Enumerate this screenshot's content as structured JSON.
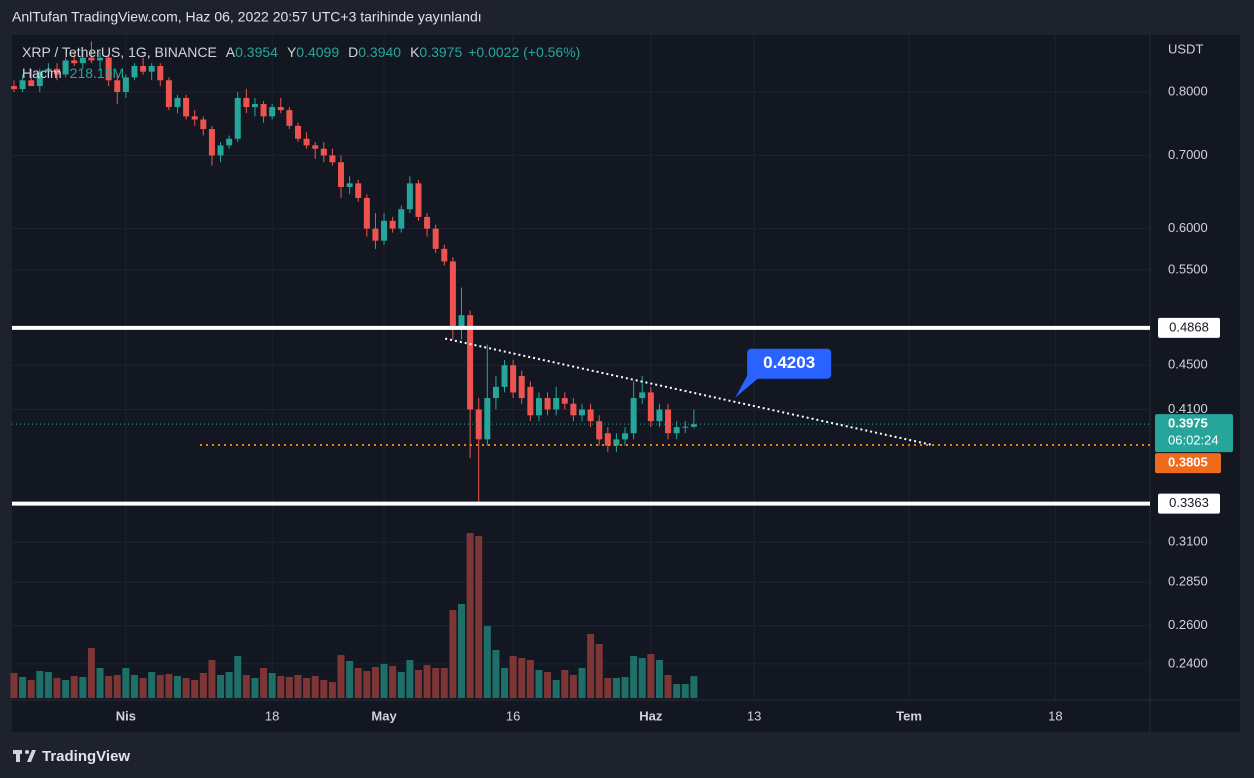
{
  "header": "AnlTufan TradingView.com, Haz 06, 2022 20:57 UTC+3 tarihinde yayınlandı",
  "footer_brand": "TradingView",
  "chart_data": {
    "type": "candlestick",
    "symbol": "XRP / TetherUS, 1G, BINANCE",
    "ohlc_legend": [
      {
        "key": "A",
        "value": "0.3954"
      },
      {
        "key": "Y",
        "value": "0.4099"
      },
      {
        "key": "D",
        "value": "0.3940"
      },
      {
        "key": "K",
        "value": "0.3975"
      }
    ],
    "change": "+0.0022 (+0.56%)",
    "volume_name": "Hacim",
    "volume_label": "218.19M",
    "price_unit": "USDT",
    "log_scale": true,
    "grid": true,
    "up_color": "#26a69a",
    "down_color": "#ef5350",
    "volume_up_color": "#1f6f69",
    "volume_down_color": "#7d3535",
    "ylim": [
      0.2224,
      0.902
    ],
    "xlim": [
      -0.23,
      132
    ],
    "yticks": [
      {
        "value": 0.8,
        "label": "0.8000"
      },
      {
        "value": 0.7,
        "label": "0.7000"
      },
      {
        "value": 0.6,
        "label": "0.6000"
      },
      {
        "value": 0.55,
        "label": "0.5500"
      },
      {
        "value": 0.45,
        "label": "0.4500"
      },
      {
        "value": 0.41,
        "label": "0.4100"
      },
      {
        "value": 0.31,
        "label": "0.3100"
      },
      {
        "value": 0.285,
        "label": "0.2850"
      },
      {
        "value": 0.26,
        "label": "0.2600"
      },
      {
        "value": 0.24,
        "label": "0.2400"
      }
    ],
    "xticks": [
      {
        "value": 13,
        "label": "Nis"
      },
      {
        "value": 30,
        "label": "18"
      },
      {
        "value": 43,
        "label": "May"
      },
      {
        "value": 58,
        "label": "16"
      },
      {
        "value": 74,
        "label": "Haz"
      },
      {
        "value": 86,
        "label": "13"
      },
      {
        "value": 104,
        "label": "Tem"
      },
      {
        "value": 121,
        "label": "18"
      }
    ],
    "open": [
      0.81,
      0.805,
      0.82,
      0.81,
      0.835,
      0.84,
      0.83,
      0.855,
      0.85,
      0.86,
      0.855,
      0.86,
      0.82,
      0.8,
      0.825,
      0.845,
      0.835,
      0.845,
      0.82,
      0.775,
      0.79,
      0.76,
      0.755,
      0.74,
      0.7,
      0.715,
      0.725,
      0.79,
      0.775,
      0.78,
      0.76,
      0.775,
      0.77,
      0.745,
      0.725,
      0.715,
      0.71,
      0.7,
      0.69,
      0.655,
      0.66,
      0.64,
      0.6,
      0.585,
      0.61,
      0.6,
      0.625,
      0.66,
      0.615,
      0.6,
      0.575,
      0.56,
      0.485,
      0.5,
      0.41,
      0.385,
      0.42,
      0.43,
      0.45,
      0.44,
      0.43,
      0.405,
      0.42,
      0.41,
      0.42,
      0.415,
      0.405,
      0.41,
      0.4,
      0.39,
      0.38,
      0.385,
      0.39,
      0.42,
      0.425,
      0.4,
      0.41,
      0.39,
      0.395,
      0.3954
    ],
    "high": [
      0.82,
      0.83,
      0.84,
      0.84,
      0.85,
      0.85,
      0.86,
      0.87,
      0.87,
      0.89,
      0.87,
      0.865,
      0.83,
      0.83,
      0.85,
      0.86,
      0.85,
      0.85,
      0.825,
      0.795,
      0.795,
      0.77,
      0.76,
      0.745,
      0.72,
      0.73,
      0.8,
      0.805,
      0.79,
      0.785,
      0.78,
      0.79,
      0.775,
      0.75,
      0.735,
      0.72,
      0.72,
      0.71,
      0.7,
      0.67,
      0.665,
      0.645,
      0.62,
      0.62,
      0.615,
      0.63,
      0.67,
      0.665,
      0.62,
      0.605,
      0.58,
      0.565,
      0.53,
      0.505,
      0.42,
      0.47,
      0.44,
      0.455,
      0.455,
      0.445,
      0.435,
      0.425,
      0.425,
      0.43,
      0.425,
      0.42,
      0.415,
      0.415,
      0.405,
      0.395,
      0.39,
      0.395,
      0.435,
      0.44,
      0.43,
      0.415,
      0.415,
      0.4,
      0.4,
      0.4099
    ],
    "low": [
      0.8,
      0.8,
      0.81,
      0.8,
      0.825,
      0.82,
      0.825,
      0.845,
      0.84,
      0.85,
      0.84,
      0.81,
      0.78,
      0.79,
      0.82,
      0.83,
      0.82,
      0.81,
      0.77,
      0.765,
      0.755,
      0.745,
      0.73,
      0.685,
      0.69,
      0.71,
      0.72,
      0.765,
      0.76,
      0.75,
      0.755,
      0.765,
      0.74,
      0.72,
      0.71,
      0.695,
      0.69,
      0.685,
      0.64,
      0.645,
      0.635,
      0.59,
      0.575,
      0.58,
      0.595,
      0.595,
      0.62,
      0.61,
      0.59,
      0.57,
      0.555,
      0.475,
      0.475,
      0.37,
      0.336,
      0.38,
      0.41,
      0.425,
      0.42,
      0.415,
      0.4,
      0.4,
      0.405,
      0.405,
      0.41,
      0.4,
      0.4,
      0.395,
      0.38,
      0.375,
      0.375,
      0.38,
      0.385,
      0.415,
      0.395,
      0.395,
      0.385,
      0.385,
      0.39,
      0.394
    ],
    "close": [
      0.805,
      0.82,
      0.81,
      0.835,
      0.84,
      0.83,
      0.855,
      0.85,
      0.86,
      0.855,
      0.86,
      0.82,
      0.8,
      0.825,
      0.845,
      0.835,
      0.845,
      0.82,
      0.775,
      0.79,
      0.76,
      0.755,
      0.74,
      0.7,
      0.715,
      0.725,
      0.79,
      0.775,
      0.78,
      0.76,
      0.775,
      0.77,
      0.745,
      0.725,
      0.715,
      0.71,
      0.7,
      0.69,
      0.655,
      0.66,
      0.64,
      0.6,
      0.585,
      0.61,
      0.6,
      0.625,
      0.66,
      0.615,
      0.6,
      0.575,
      0.56,
      0.485,
      0.5,
      0.41,
      0.385,
      0.42,
      0.43,
      0.45,
      0.425,
      0.42,
      0.405,
      0.42,
      0.41,
      0.42,
      0.415,
      0.405,
      0.41,
      0.4,
      0.385,
      0.38,
      0.385,
      0.39,
      0.42,
      0.425,
      0.4,
      0.41,
      0.39,
      0.395,
      0.3954,
      0.3975
    ],
    "volume": [
      250,
      210,
      180,
      270,
      260,
      200,
      180,
      220,
      210,
      500,
      300,
      220,
      230,
      300,
      230,
      200,
      260,
      230,
      240,
      220,
      200,
      180,
      250,
      380,
      230,
      260,
      420,
      230,
      200,
      300,
      250,
      220,
      210,
      230,
      200,
      220,
      180,
      160,
      430,
      370,
      300,
      270,
      310,
      340,
      320,
      260,
      380,
      280,
      330,
      300,
      300,
      880,
      940,
      1650,
      1620,
      720,
      480,
      300,
      420,
      400,
      380,
      280,
      260,
      180,
      280,
      230,
      300,
      640,
      540,
      200,
      200,
      210,
      420,
      400,
      440,
      380,
      230,
      140,
      140,
      218.19
    ],
    "hlines": [
      0.4868,
      0.3363
    ],
    "alert_line": 0.3805,
    "countdown": "06:02:24",
    "trendline": {
      "x": [
        50.1,
        106.7
      ],
      "y": [
        0.476,
        0.3805
      ]
    },
    "annotation": {
      "x": 83.8,
      "value": 0.4203
    }
  }
}
